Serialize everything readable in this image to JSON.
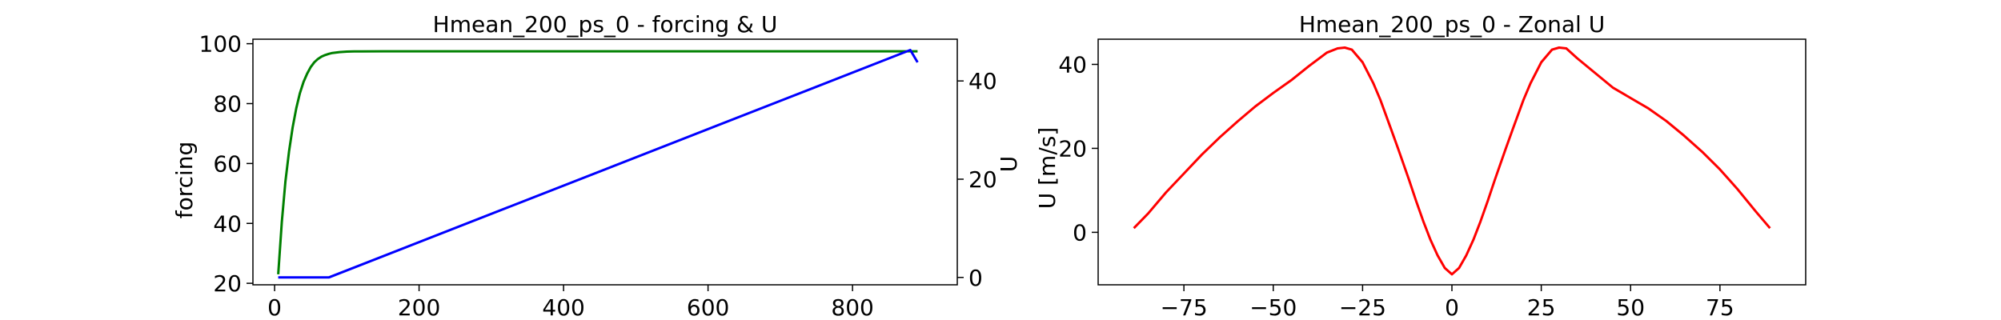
{
  "chart_data": [
    {
      "type": "line",
      "title": "Hmean_200_ps_0 - forcing & U",
      "xlabel": "",
      "ylabel": "forcing",
      "ylabel_right": "U",
      "xlim": [
        -30,
        945
      ],
      "ylim": [
        19.5,
        101.5
      ],
      "ylim_right": [
        -1.5,
        48.5
      ],
      "xticks": [
        0,
        200,
        400,
        600,
        800
      ],
      "yticks": [
        20,
        40,
        60,
        80,
        100
      ],
      "yticks_right": [
        0,
        20,
        40
      ],
      "grid": false,
      "series": [
        {
          "axis": "left",
          "color": "#008000",
          "x": [
            5,
            10,
            15,
            20,
            25,
            30,
            35,
            40,
            45,
            50,
            55,
            60,
            65,
            70,
            75,
            80,
            90,
            100,
            110,
            120,
            150,
            200,
            400,
            600,
            800,
            890
          ],
          "y": [
            23,
            40.5,
            54,
            64,
            72,
            78.5,
            83.5,
            87.2,
            90,
            92.2,
            93.8,
            94.9,
            95.7,
            96.2,
            96.6,
            96.9,
            97.2,
            97.35,
            97.42,
            97.45,
            97.47,
            97.48,
            97.48,
            97.48,
            97.48,
            97.48
          ]
        },
        {
          "axis": "right",
          "color": "#0000ff",
          "x": [
            5,
            75,
            880,
            890
          ],
          "y": [
            0,
            0,
            46.3,
            43.8
          ]
        }
      ]
    },
    {
      "type": "line",
      "title": "Hmean_200_ps_0 - Zonal U",
      "xlabel": "",
      "ylabel": "U [m/s]",
      "xlim": [
        -99,
        99
      ],
      "ylim": [
        -12.5,
        46
      ],
      "xticks": [
        -75,
        -50,
        -25,
        0,
        25,
        50,
        75
      ],
      "yticks": [
        0,
        20,
        40
      ],
      "grid": false,
      "series": [
        {
          "color": "#ff0000",
          "x": [
            -89,
            -85,
            -80,
            -75,
            -70,
            -65,
            -60,
            -55,
            -50,
            -45,
            -40,
            -35,
            -32,
            -30,
            -28,
            -25,
            -22,
            -20,
            -17,
            -15,
            -12,
            -10,
            -8,
            -6,
            -4,
            -2,
            0,
            2,
            4,
            6,
            8,
            10,
            12,
            15,
            17,
            20,
            22,
            25,
            28,
            30,
            32,
            35,
            40,
            45,
            50,
            55,
            60,
            65,
            70,
            75,
            80,
            85,
            89
          ],
          "y": [
            1,
            4.5,
            9.5,
            14,
            18.5,
            22.6,
            26.4,
            30,
            33.2,
            36.2,
            39.6,
            42.8,
            43.8,
            44,
            43.5,
            40.5,
            35.5,
            31.5,
            24.5,
            19.8,
            12.5,
            7.4,
            2.6,
            -1.8,
            -5.5,
            -8.5,
            -10,
            -8.5,
            -5.5,
            -1.8,
            2.6,
            7.4,
            12.5,
            19.8,
            24.5,
            31.5,
            35.5,
            40.5,
            43.5,
            44,
            43.8,
            41.5,
            38,
            34.5,
            32,
            29.5,
            26.5,
            23,
            19.2,
            15,
            10.2,
            5,
            1
          ]
        }
      ]
    }
  ]
}
